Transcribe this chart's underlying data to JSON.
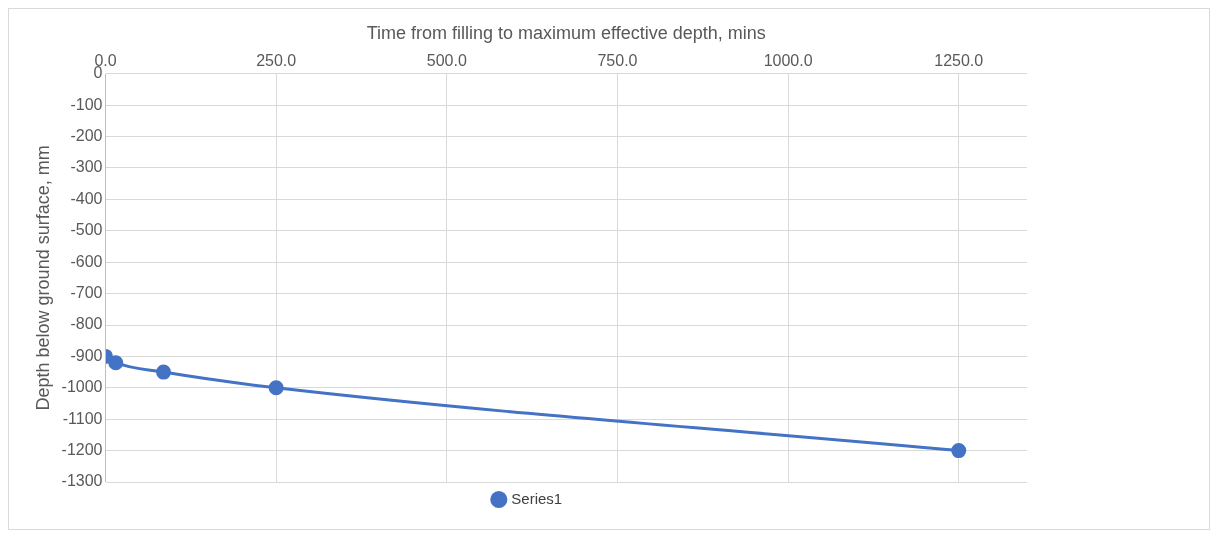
{
  "chart_data": {
    "type": "line",
    "xlabel": "Time from filling to maximum effective depth, mins",
    "ylabel": "Depth below ground surface, mm",
    "series": [
      {
        "name": "Series1",
        "color": "#4472c4",
        "x": [
          0,
          15,
          85,
          250,
          1250
        ],
        "values": [
          -900,
          -920,
          -950,
          -1000,
          -1200
        ]
      }
    ],
    "xlim": [
      0,
      1350
    ],
    "xticks": [
      {
        "value": 0,
        "label": "0.0"
      },
      {
        "value": 250,
        "label": "250.0"
      },
      {
        "value": 500,
        "label": "500.0"
      },
      {
        "value": 750,
        "label": "750.0"
      },
      {
        "value": 1000,
        "label": "1000.0"
      },
      {
        "value": 1250,
        "label": "1250.0"
      }
    ],
    "ylim": [
      -1300,
      0
    ],
    "yticks": [
      0,
      -100,
      -200,
      -300,
      -400,
      -500,
      -600,
      -700,
      -800,
      -900,
      -1000,
      -1100,
      -1200,
      -1300
    ],
    "grid": true,
    "legend": "bottom",
    "marker": "circle",
    "line_style": "solid"
  }
}
